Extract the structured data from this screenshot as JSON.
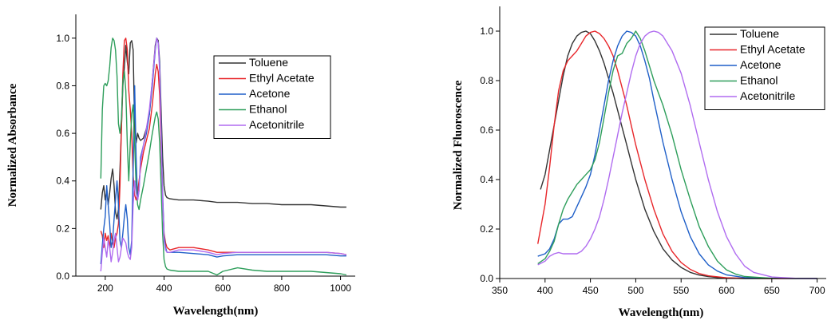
{
  "chart_data": [
    {
      "type": "line",
      "xlabel": "Wavelength(nm)",
      "ylabel": "Normalized Absorbance",
      "xlim": [
        100,
        1050
      ],
      "ylim": [
        0,
        1.1
      ],
      "xticks": [
        200,
        400,
        600,
        800,
        1000
      ],
      "yticks": [
        0.0,
        0.2,
        0.4,
        0.6,
        0.8,
        1.0
      ],
      "ytick_labels": [
        "0.0",
        "0.2",
        "0.4",
        "0.6",
        "0.8",
        "1.0"
      ],
      "grid": false,
      "legend": "top-right",
      "series": [
        {
          "name": "Toluene",
          "color": "#333333",
          "x": [
            185,
            190,
            195,
            200,
            205,
            210,
            215,
            220,
            225,
            230,
            235,
            240,
            245,
            250,
            255,
            260,
            265,
            270,
            275,
            280,
            285,
            290,
            295,
            300,
            305,
            310,
            315,
            320,
            330,
            340,
            350,
            360,
            370,
            375,
            380,
            385,
            390,
            395,
            400,
            405,
            410,
            420,
            450,
            500,
            550,
            580,
            600,
            650,
            700,
            750,
            800,
            850,
            900,
            950,
            1000,
            1020
          ],
          "y": [
            0.28,
            0.35,
            0.38,
            0.32,
            0.36,
            0.3,
            0.35,
            0.41,
            0.45,
            0.38,
            0.27,
            0.24,
            0.28,
            0.45,
            0.62,
            0.8,
            0.88,
            0.97,
            0.9,
            0.85,
            0.98,
            0.99,
            0.95,
            0.62,
            0.56,
            0.6,
            0.58,
            0.57,
            0.58,
            0.62,
            0.68,
            0.82,
            0.97,
            1.0,
            0.99,
            0.9,
            0.7,
            0.5,
            0.38,
            0.34,
            0.33,
            0.325,
            0.32,
            0.32,
            0.315,
            0.31,
            0.31,
            0.31,
            0.305,
            0.305,
            0.3,
            0.3,
            0.3,
            0.295,
            0.29,
            0.29
          ]
        },
        {
          "name": "Ethyl Acetate",
          "color": "#e8262a",
          "x": [
            185,
            190,
            195,
            200,
            205,
            210,
            215,
            220,
            225,
            230,
            235,
            240,
            245,
            250,
            255,
            260,
            265,
            270,
            275,
            280,
            285,
            290,
            295,
            300,
            305,
            310,
            315,
            320,
            330,
            340,
            350,
            360,
            370,
            375,
            380,
            385,
            390,
            395,
            400,
            405,
            410,
            420,
            450,
            500,
            550,
            580,
            600,
            650,
            700,
            750,
            800,
            850,
            900,
            950,
            1000,
            1020
          ],
          "y": [
            0.19,
            0.17,
            0.12,
            0.18,
            0.15,
            0.17,
            0.12,
            0.18,
            0.14,
            0.12,
            0.16,
            0.18,
            0.22,
            0.38,
            0.62,
            0.85,
            0.99,
            1.0,
            0.95,
            0.78,
            0.7,
            0.6,
            0.42,
            0.34,
            0.32,
            0.35,
            0.4,
            0.45,
            0.52,
            0.57,
            0.62,
            0.72,
            0.85,
            0.89,
            0.86,
            0.76,
            0.55,
            0.32,
            0.18,
            0.14,
            0.12,
            0.11,
            0.12,
            0.12,
            0.11,
            0.1,
            0.1,
            0.1,
            0.1,
            0.1,
            0.1,
            0.1,
            0.1,
            0.1,
            0.095,
            0.09
          ]
        },
        {
          "name": "Acetone",
          "color": "#1f5fc8",
          "x": [
            185,
            190,
            195,
            200,
            205,
            210,
            215,
            220,
            225,
            230,
            235,
            240,
            245,
            250,
            255,
            260,
            265,
            270,
            275,
            280,
            285,
            290,
            295,
            300,
            305,
            310,
            315,
            320,
            330,
            340,
            350,
            360,
            370,
            375,
            380,
            385,
            390,
            395,
            400,
            405,
            410,
            420,
            450,
            500,
            550,
            580,
            600,
            650,
            700,
            750,
            800,
            850,
            900,
            950,
            1000,
            1020
          ],
          "y": [
            0.05,
            0.13,
            0.2,
            0.25,
            0.38,
            0.3,
            0.22,
            0.12,
            0.15,
            0.24,
            0.32,
            0.4,
            0.3,
            0.15,
            0.12,
            0.18,
            0.25,
            0.3,
            0.24,
            0.12,
            0.09,
            0.15,
            0.45,
            0.8,
            0.5,
            0.32,
            0.36,
            0.5,
            0.55,
            0.6,
            0.68,
            0.8,
            0.95,
            1.0,
            0.98,
            0.88,
            0.62,
            0.35,
            0.17,
            0.12,
            0.1,
            0.1,
            0.1,
            0.095,
            0.09,
            0.08,
            0.085,
            0.09,
            0.09,
            0.09,
            0.09,
            0.09,
            0.09,
            0.09,
            0.085,
            0.085
          ]
        },
        {
          "name": "Ethanol",
          "color": "#2e9e5b",
          "x": [
            185,
            190,
            195,
            200,
            205,
            210,
            215,
            220,
            225,
            230,
            235,
            240,
            245,
            250,
            255,
            260,
            265,
            270,
            275,
            280,
            285,
            290,
            295,
            300,
            305,
            310,
            315,
            320,
            330,
            340,
            350,
            360,
            370,
            375,
            380,
            385,
            390,
            395,
            400,
            405,
            410,
            420,
            450,
            500,
            550,
            580,
            600,
            650,
            700,
            750,
            800,
            850,
            900,
            950,
            1000,
            1020
          ],
          "y": [
            0.41,
            0.7,
            0.8,
            0.81,
            0.8,
            0.82,
            0.88,
            0.96,
            1.0,
            0.99,
            0.95,
            0.84,
            0.64,
            0.6,
            0.66,
            0.82,
            0.86,
            0.78,
            0.55,
            0.4,
            0.56,
            0.68,
            0.72,
            0.55,
            0.38,
            0.3,
            0.28,
            0.32,
            0.38,
            0.45,
            0.52,
            0.6,
            0.67,
            0.69,
            0.66,
            0.56,
            0.38,
            0.18,
            0.07,
            0.04,
            0.03,
            0.025,
            0.02,
            0.02,
            0.02,
            0.005,
            0.02,
            0.035,
            0.025,
            0.02,
            0.02,
            0.02,
            0.02,
            0.015,
            0.01,
            0.005
          ]
        },
        {
          "name": "Acetonitrile",
          "color": "#b06cf0",
          "x": [
            185,
            190,
            195,
            200,
            205,
            210,
            215,
            220,
            225,
            230,
            235,
            240,
            245,
            250,
            255,
            260,
            265,
            270,
            275,
            280,
            285,
            290,
            295,
            300,
            305,
            310,
            315,
            320,
            330,
            340,
            350,
            360,
            370,
            375,
            380,
            385,
            390,
            395,
            400,
            405,
            410,
            420,
            450,
            500,
            550,
            580,
            600,
            650,
            700,
            750,
            800,
            850,
            900,
            950,
            1000,
            1020
          ],
          "y": [
            0.02,
            0.1,
            0.16,
            0.12,
            0.08,
            0.15,
            0.12,
            0.06,
            0.1,
            0.15,
            0.18,
            0.12,
            0.06,
            0.08,
            0.12,
            0.16,
            0.15,
            0.14,
            0.1,
            0.08,
            0.07,
            0.12,
            0.3,
            0.4,
            0.35,
            0.32,
            0.36,
            0.48,
            0.55,
            0.62,
            0.7,
            0.82,
            0.96,
            1.0,
            0.98,
            0.86,
            0.6,
            0.32,
            0.15,
            0.11,
            0.1,
            0.1,
            0.11,
            0.11,
            0.1,
            0.09,
            0.095,
            0.1,
            0.1,
            0.1,
            0.1,
            0.1,
            0.1,
            0.1,
            0.095,
            0.09
          ]
        }
      ]
    },
    {
      "type": "line",
      "xlabel": "Wavelength(nm)",
      "ylabel": "Normalized Fluoroscence",
      "xlim": [
        350,
        710
      ],
      "ylim": [
        0,
        1.1
      ],
      "xticks": [
        350,
        400,
        450,
        500,
        550,
        600,
        650,
        700
      ],
      "yticks": [
        0.0,
        0.2,
        0.4,
        0.6,
        0.8,
        1.0
      ],
      "ytick_labels": [
        "0.0",
        "0.2",
        "0.4",
        "0.6",
        "0.8",
        "1.0"
      ],
      "grid": false,
      "legend": "top-right",
      "series": [
        {
          "name": "Toluene",
          "color": "#333333",
          "x": [
            395,
            400,
            405,
            410,
            415,
            420,
            425,
            430,
            435,
            440,
            445,
            450,
            455,
            460,
            465,
            470,
            475,
            480,
            485,
            490,
            495,
            500,
            505,
            510,
            520,
            530,
            540,
            550,
            560,
            570,
            580,
            590,
            600,
            620,
            650,
            680,
            700
          ],
          "y": [
            0.36,
            0.42,
            0.52,
            0.62,
            0.72,
            0.82,
            0.9,
            0.95,
            0.98,
            0.995,
            1.0,
            0.99,
            0.96,
            0.92,
            0.87,
            0.81,
            0.75,
            0.68,
            0.61,
            0.54,
            0.47,
            0.4,
            0.34,
            0.28,
            0.19,
            0.12,
            0.075,
            0.045,
            0.025,
            0.014,
            0.008,
            0.004,
            0.002,
            0.0,
            0.0,
            0.0,
            0.0
          ]
        },
        {
          "name": "Ethyl Acetate",
          "color": "#e8262a",
          "x": [
            392,
            400,
            405,
            410,
            415,
            420,
            425,
            430,
            435,
            440,
            445,
            450,
            455,
            460,
            465,
            470,
            475,
            480,
            485,
            490,
            495,
            500,
            510,
            520,
            530,
            540,
            550,
            560,
            570,
            580,
            600,
            620,
            650,
            680,
            700
          ],
          "y": [
            0.14,
            0.3,
            0.45,
            0.62,
            0.76,
            0.84,
            0.88,
            0.9,
            0.92,
            0.95,
            0.98,
            0.995,
            1.0,
            0.99,
            0.97,
            0.94,
            0.9,
            0.84,
            0.77,
            0.7,
            0.62,
            0.54,
            0.4,
            0.28,
            0.18,
            0.11,
            0.065,
            0.037,
            0.02,
            0.011,
            0.003,
            0.001,
            0.0,
            0.0,
            0.0
          ]
        },
        {
          "name": "Acetone",
          "color": "#1f5fc8",
          "x": [
            392,
            400,
            405,
            410,
            415,
            420,
            425,
            430,
            435,
            440,
            445,
            450,
            455,
            460,
            465,
            470,
            475,
            480,
            485,
            490,
            495,
            500,
            505,
            510,
            515,
            520,
            530,
            540,
            550,
            560,
            570,
            580,
            590,
            600,
            620,
            650,
            680,
            700
          ],
          "y": [
            0.09,
            0.1,
            0.12,
            0.16,
            0.22,
            0.24,
            0.24,
            0.25,
            0.29,
            0.33,
            0.37,
            0.42,
            0.5,
            0.6,
            0.7,
            0.8,
            0.88,
            0.94,
            0.98,
            1.0,
            0.995,
            0.98,
            0.94,
            0.88,
            0.81,
            0.72,
            0.55,
            0.4,
            0.27,
            0.17,
            0.1,
            0.055,
            0.03,
            0.015,
            0.004,
            0.001,
            0.0,
            0.0
          ]
        },
        {
          "name": "Ethanol",
          "color": "#2e9e5b",
          "x": [
            392,
            400,
            405,
            410,
            415,
            420,
            425,
            430,
            435,
            440,
            445,
            450,
            455,
            460,
            465,
            470,
            475,
            480,
            485,
            490,
            495,
            500,
            505,
            510,
            515,
            520,
            530,
            540,
            550,
            560,
            570,
            580,
            590,
            600,
            610,
            620,
            650,
            680,
            700
          ],
          "y": [
            0.06,
            0.08,
            0.11,
            0.15,
            0.22,
            0.28,
            0.32,
            0.35,
            0.38,
            0.4,
            0.42,
            0.44,
            0.48,
            0.55,
            0.65,
            0.75,
            0.84,
            0.9,
            0.91,
            0.95,
            0.97,
            1.0,
            0.97,
            0.92,
            0.86,
            0.8,
            0.7,
            0.58,
            0.44,
            0.32,
            0.21,
            0.13,
            0.07,
            0.035,
            0.018,
            0.008,
            0.001,
            0.0,
            0.0
          ]
        },
        {
          "name": "Acetonitrile",
          "color": "#b06cf0",
          "x": [
            392,
            400,
            405,
            410,
            415,
            420,
            425,
            430,
            435,
            440,
            445,
            450,
            455,
            460,
            465,
            470,
            475,
            480,
            485,
            490,
            495,
            500,
            505,
            510,
            515,
            520,
            525,
            530,
            540,
            550,
            560,
            570,
            580,
            590,
            600,
            610,
            620,
            630,
            650,
            680,
            700
          ],
          "y": [
            0.055,
            0.07,
            0.09,
            0.1,
            0.105,
            0.1,
            0.1,
            0.1,
            0.1,
            0.11,
            0.13,
            0.16,
            0.2,
            0.25,
            0.32,
            0.4,
            0.49,
            0.58,
            0.67,
            0.75,
            0.83,
            0.9,
            0.95,
            0.98,
            0.995,
            1.0,
            0.995,
            0.98,
            0.92,
            0.83,
            0.7,
            0.55,
            0.4,
            0.27,
            0.17,
            0.1,
            0.05,
            0.025,
            0.006,
            0.0,
            0.0
          ]
        }
      ]
    }
  ]
}
